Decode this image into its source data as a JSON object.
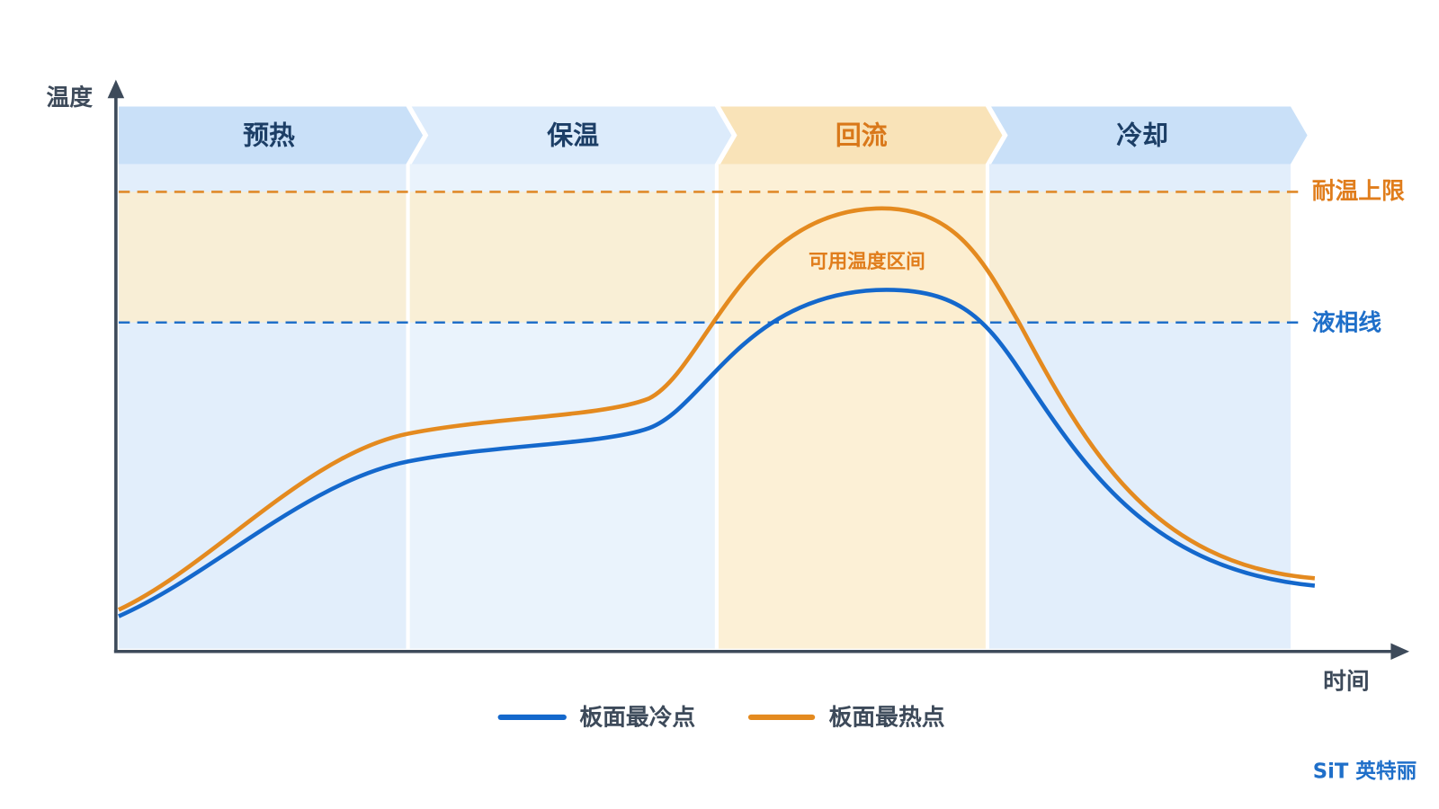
{
  "axes": {
    "y_label": "温度",
    "x_label": "时间"
  },
  "phases": [
    "预热",
    "保温",
    "回流",
    "冷却"
  ],
  "reference_lines": {
    "upper_limit": "耐温上限",
    "liquidus": "液相线"
  },
  "zone_label": "可用温度区间",
  "legend": [
    "板面最冷点",
    "板面最热点"
  ],
  "brand": "SiT 英特丽"
}
